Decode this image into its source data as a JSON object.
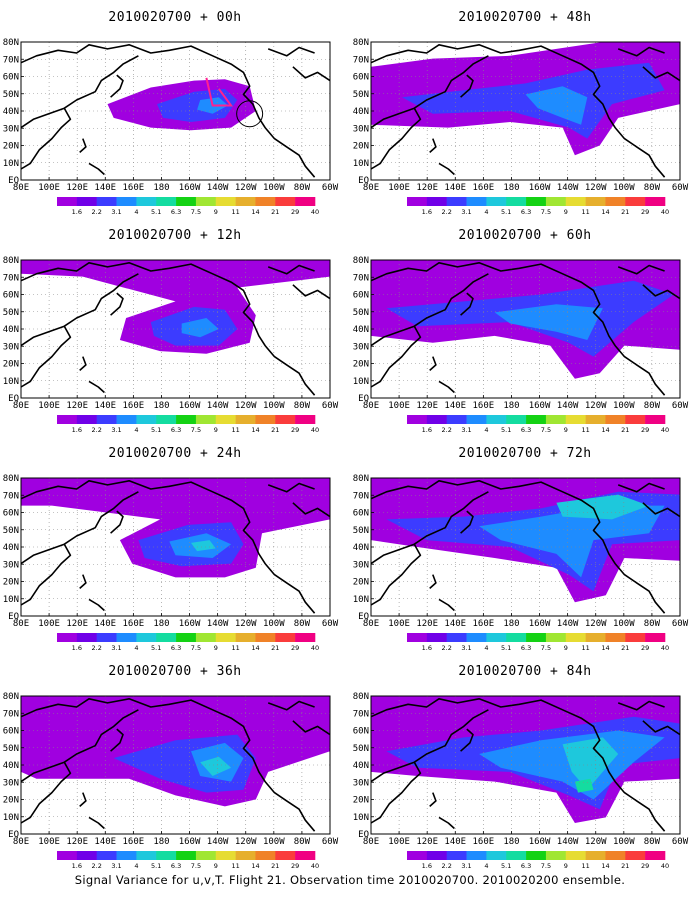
{
  "panels": [
    {
      "title": "2010020700 + 00h"
    },
    {
      "title": "2010020700 + 48h"
    },
    {
      "title": "2010020700 + 12h"
    },
    {
      "title": "2010020700 + 60h"
    },
    {
      "title": "2010020700 + 24h"
    },
    {
      "title": "2010020700 + 72h"
    },
    {
      "title": "2010020700 + 36h"
    },
    {
      "title": "2010020700 + 84h"
    }
  ],
  "lat_labels": [
    "80N",
    "70N",
    "60N",
    "50N",
    "40N",
    "30N",
    "20N",
    "10N",
    "EQ"
  ],
  "lon_labels": [
    "80E",
    "100E",
    "120E",
    "140E",
    "160E",
    "180",
    "160W",
    "140W",
    "120W",
    "100W",
    "80W",
    "60W"
  ],
  "colorbar": {
    "labels": [
      "1.6",
      "2.2",
      "3.1",
      "4",
      "5.1",
      "6.3",
      "7.5",
      "9",
      "11",
      "14",
      "21",
      "29",
      "40"
    ],
    "colors": [
      "#a000e0",
      "#7000e8",
      "#3c3cff",
      "#1e8cff",
      "#1ec8dc",
      "#14dca0",
      "#14d214",
      "#a0e632",
      "#e6dc32",
      "#e6af2d",
      "#f08228",
      "#fa3c3c",
      "#f00082"
    ]
  },
  "caption": "Signal Variance for u,v,T. Flight 21. Observation time 2010020700. 2010020200 ensemble."
}
